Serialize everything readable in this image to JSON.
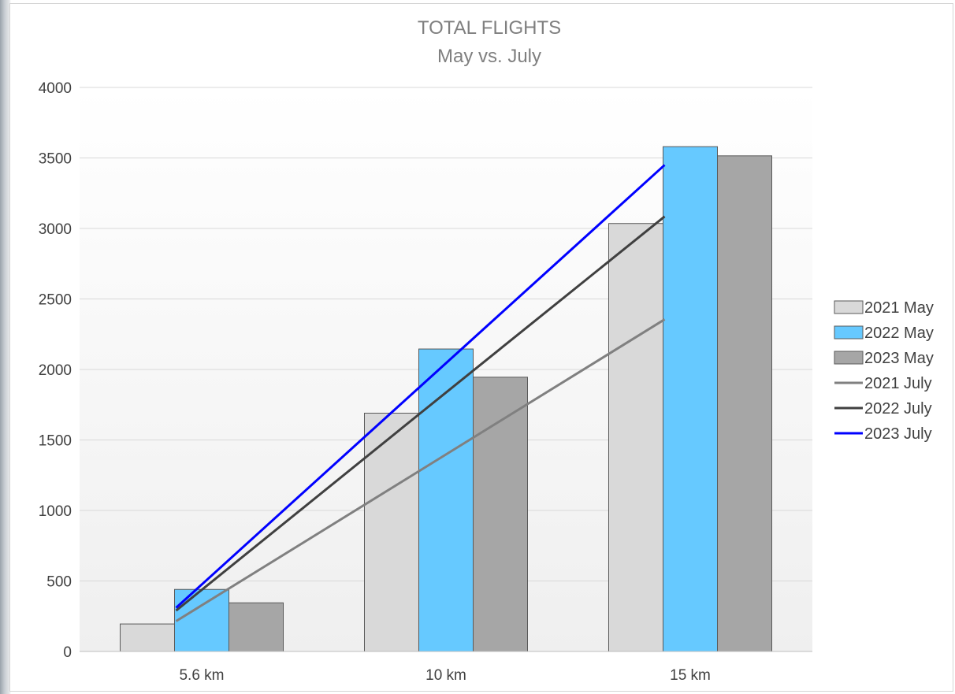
{
  "chart_data": {
    "type": "bar",
    "title": "TOTAL FLIGHTS",
    "subtitle": "May vs. July",
    "xlabel": "",
    "ylabel": "",
    "categories": [
      "5.6 km",
      "10 km",
      "15 km"
    ],
    "ylim": [
      0,
      4000
    ],
    "yticks": [
      "0",
      "500",
      "1000",
      "1500",
      "2000",
      "2500",
      "3000",
      "3500",
      "4000"
    ],
    "grid": true,
    "legend_position": "right",
    "series": [
      {
        "name": "2021 May",
        "kind": "bar",
        "color": "#d9d9d9",
        "values": [
          195,
          1690,
          3035
        ]
      },
      {
        "name": "2022 May",
        "kind": "bar",
        "color": "#66c9ff",
        "values": [
          440,
          2145,
          3580
        ]
      },
      {
        "name": "2023 May",
        "kind": "bar",
        "color": "#a6a6a6",
        "values": [
          345,
          1945,
          3515
        ]
      },
      {
        "name": "2021 July",
        "kind": "line",
        "color": "#808080",
        "values": [
          215,
          1285,
          2355
        ]
      },
      {
        "name": "2022 July",
        "kind": "line",
        "color": "#404040",
        "values": [
          290,
          1690,
          3085
        ]
      },
      {
        "name": "2023 July",
        "kind": "line",
        "color": "#0000ff",
        "values": [
          310,
          1880,
          3450
        ]
      }
    ]
  }
}
